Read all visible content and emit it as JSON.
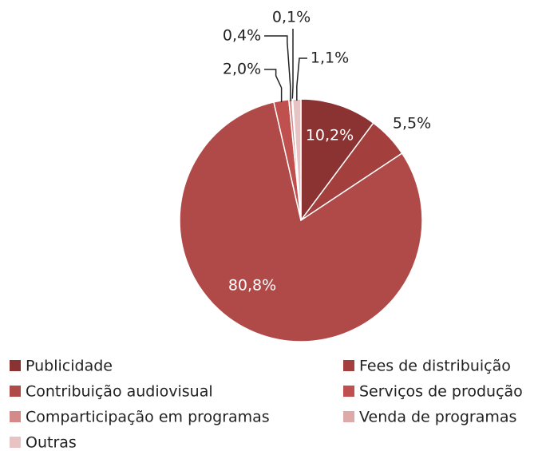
{
  "chart_data": {
    "type": "pie",
    "categories": [
      "Publicidade",
      "Fees de distribuição",
      "Contribuição audiovisual",
      "Serviços de produção",
      "Comparticipação em programas",
      "Venda de programas",
      "Outras"
    ],
    "values": [
      10.2,
      5.5,
      80.8,
      2.0,
      0.4,
      0.1,
      1.1
    ],
    "value_labels": [
      "10,2%",
      "5,5%",
      "80,8%",
      "2,0%",
      "0,4%",
      "0,1%",
      "1,1%"
    ],
    "colors": [
      "#8b3333",
      "#a33f3d",
      "#b04a48",
      "#c0504d",
      "#d48a88",
      "#deaaa9",
      "#e8c3c3"
    ],
    "legend": "bottom"
  }
}
